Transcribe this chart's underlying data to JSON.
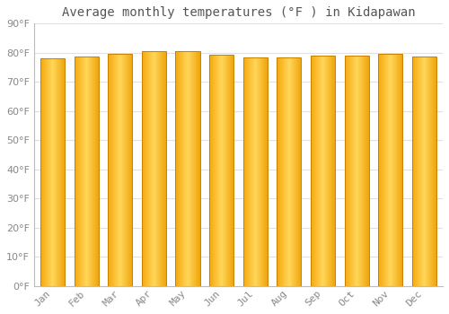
{
  "title": "Average monthly temperatures (°F ) in Kidapawan",
  "months": [
    "Jan",
    "Feb",
    "Mar",
    "Apr",
    "May",
    "Jun",
    "Jul",
    "Aug",
    "Sep",
    "Oct",
    "Nov",
    "Dec"
  ],
  "values": [
    78.1,
    78.6,
    79.7,
    80.4,
    80.4,
    79.2,
    78.4,
    78.3,
    79.0,
    79.1,
    79.5,
    78.8
  ],
  "ylim": [
    0,
    90
  ],
  "yticks": [
    0,
    10,
    20,
    30,
    40,
    50,
    60,
    70,
    80,
    90
  ],
  "bar_color_left": "#F5A800",
  "bar_color_center": "#FFD060",
  "bar_color_right": "#F0A000",
  "bar_edge_color": "#C88000",
  "background_color": "#FFFFFF",
  "plot_bg_color": "#FFFFFF",
  "grid_color": "#E0E0E0",
  "tick_label_color": "#888888",
  "title_color": "#555555",
  "title_fontsize": 10,
  "tick_fontsize": 8
}
